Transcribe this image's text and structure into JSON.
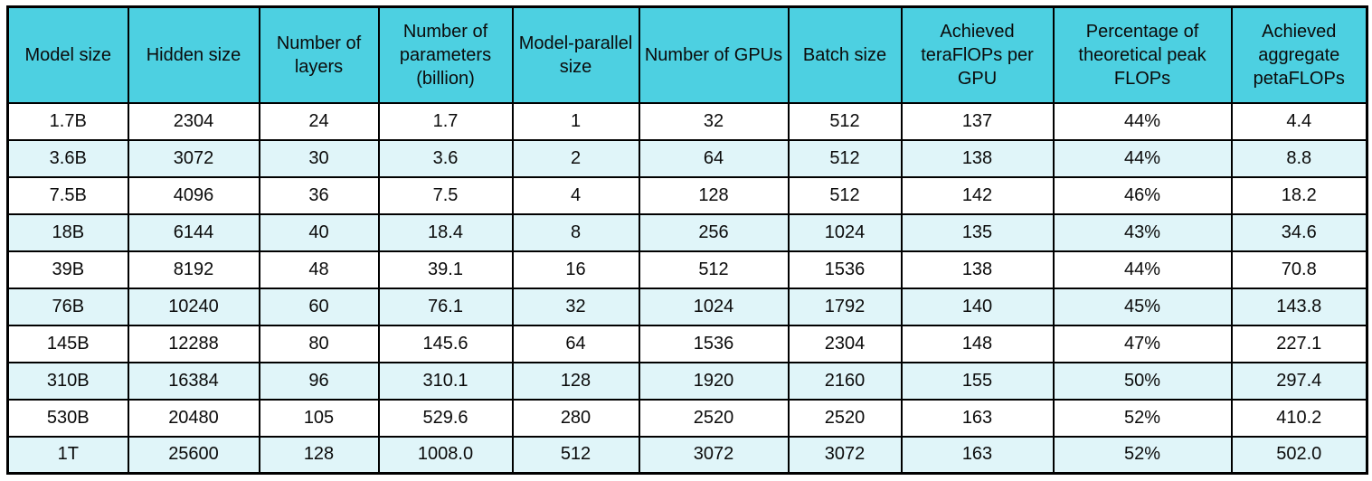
{
  "colors": {
    "header_bg": "#4DD0E1",
    "alt_row_bg": "#E0F5F9",
    "border": "#000000",
    "text": "#0b0b0b"
  },
  "chart_data": {
    "type": "table",
    "title": "",
    "columns": [
      "Model size",
      "Hidden size",
      "Number of layers",
      "Number of parameters (billion)",
      "Model-parallel size",
      "Number of GPUs",
      "Batch size",
      "Achieved teraFlOPs per GPU",
      "Percentage of theoretical peak FLOPs",
      "Achieved aggregate petaFLOPs"
    ],
    "rows": [
      [
        "1.7B",
        "2304",
        "24",
        "1.7",
        "1",
        "32",
        "512",
        "137",
        "44%",
        "4.4"
      ],
      [
        "3.6B",
        "3072",
        "30",
        "3.6",
        "2",
        "64",
        "512",
        "138",
        "44%",
        "8.8"
      ],
      [
        "7.5B",
        "4096",
        "36",
        "7.5",
        "4",
        "128",
        "512",
        "142",
        "46%",
        "18.2"
      ],
      [
        "18B",
        "6144",
        "40",
        "18.4",
        "8",
        "256",
        "1024",
        "135",
        "43%",
        "34.6"
      ],
      [
        "39B",
        "8192",
        "48",
        "39.1",
        "16",
        "512",
        "1536",
        "138",
        "44%",
        "70.8"
      ],
      [
        "76B",
        "10240",
        "60",
        "76.1",
        "32",
        "1024",
        "1792",
        "140",
        "45%",
        "143.8"
      ],
      [
        "145B",
        "12288",
        "80",
        "145.6",
        "64",
        "1536",
        "2304",
        "148",
        "47%",
        "227.1"
      ],
      [
        "310B",
        "16384",
        "96",
        "310.1",
        "128",
        "1920",
        "2160",
        "155",
        "50%",
        "297.4"
      ],
      [
        "530B",
        "20480",
        "105",
        "529.6",
        "280",
        "2520",
        "2520",
        "163",
        "52%",
        "410.2"
      ],
      [
        "1T",
        "25600",
        "128",
        "1008.0",
        "512",
        "3072",
        "3072",
        "163",
        "52%",
        "502.0"
      ]
    ],
    "layout": {
      "header_background": "#4DD0E1",
      "row_stripe_background": "#E0F5F9",
      "grid": true
    }
  }
}
